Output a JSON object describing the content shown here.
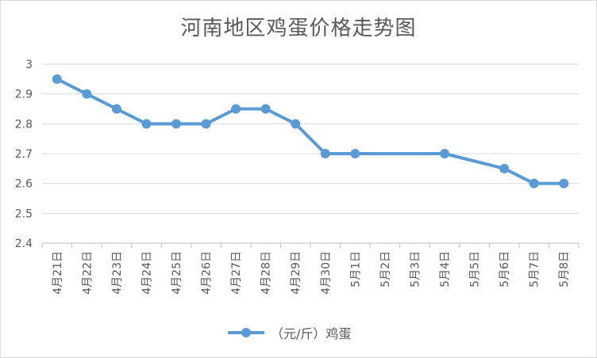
{
  "chart_data": {
    "type": "line",
    "title": "河南地区鸡蛋价格走势图",
    "categories": [
      "4月21日",
      "4月22日",
      "4月23日",
      "4月24日",
      "4月25日",
      "4月26日",
      "4月27日",
      "4月28日",
      "4月29日",
      "4月30日",
      "5月1日",
      "5月2日",
      "5月3日",
      "5月4日",
      "5月5日",
      "5月6日",
      "5月7日",
      "5月8日"
    ],
    "series": [
      {
        "name": "（元/斤）鸡蛋",
        "color": "#5b9bd5",
        "values": [
          2.95,
          2.9,
          2.85,
          2.8,
          2.8,
          2.8,
          2.85,
          2.85,
          2.8,
          2.7,
          2.7,
          null,
          null,
          2.7,
          null,
          2.65,
          2.6,
          2.6
        ]
      }
    ],
    "y_ticks": [
      "2.4",
      "2.5",
      "2.6",
      "2.7",
      "2.8",
      "2.9",
      "3"
    ],
    "ylim": [
      2.4,
      3.0
    ],
    "grid": true,
    "legend_position": "bottom",
    "connect_gaps": true
  }
}
